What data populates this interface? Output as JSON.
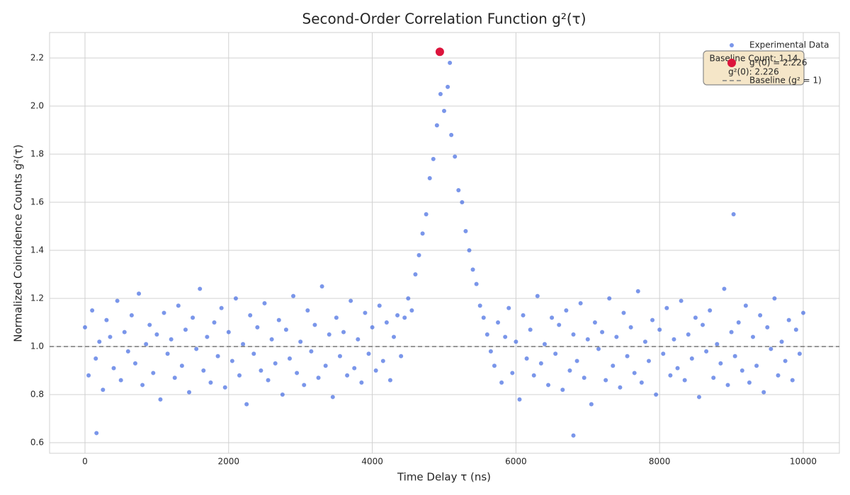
{
  "chart_data": {
    "type": "scatter",
    "title": "Second-Order Correlation Function g²(τ)",
    "x_label": "Time Delay τ (ns)",
    "y_label": "Normalized Coincidence Counts g²(τ)",
    "xlim": [
      -493,
      10503
    ],
    "ylim": [
      0.556,
      2.306
    ],
    "xticks": [
      0,
      2000,
      4000,
      6000,
      8000,
      10000
    ],
    "yticks": [
      0.6,
      0.8,
      {
        "value": 1,
        "label": "1.0"
      },
      1.2,
      1.4,
      1.6,
      1.8,
      {
        "value": 2,
        "label": "2.0"
      },
      2.2
    ],
    "grid": true,
    "legend": "upper right",
    "series": [
      {
        "name": "Experimental Data",
        "color": "#4169e1",
        "x": [
          0,
          50,
          100,
          150,
          200,
          250,
          300,
          350,
          400,
          450,
          500,
          550,
          600,
          650,
          700,
          750,
          800,
          850,
          900,
          950,
          1000,
          1050,
          1100,
          1150,
          1200,
          1250,
          1300,
          1350,
          1400,
          1450,
          1500,
          1550,
          1600,
          1650,
          1700,
          1750,
          1800,
          1850,
          1900,
          1950,
          2000,
          2050,
          2100,
          2150,
          2200,
          2250,
          2300,
          2350,
          2400,
          2450,
          2500,
          2550,
          2600,
          2650,
          2700,
          2750,
          2800,
          2850,
          2900,
          2950,
          3000,
          3050,
          3100,
          3150,
          3200,
          3250,
          3300,
          3350,
          3400,
          3450,
          3500,
          3550,
          3600,
          3650,
          3700,
          3750,
          3800,
          3850,
          3900,
          3950,
          4000,
          4050,
          4100,
          4150,
          4200,
          4250,
          4300,
          4350,
          4400,
          4450,
          4500,
          4550,
          4600,
          4650,
          4700,
          4750,
          4800,
          4850,
          4900,
          4950,
          5000,
          5050,
          5100,
          5150,
          5200,
          5250,
          5300,
          5350,
          5400,
          5450,
          5500,
          5550,
          5600,
          5650,
          5700,
          5750,
          5800,
          5850,
          5900,
          5950,
          6000,
          6050,
          6100,
          6150,
          6200,
          6250,
          6300,
          6350,
          6400,
          6450,
          6500,
          6550,
          6600,
          6650,
          6700,
          6750,
          6800,
          6850,
          6900,
          6950,
          7000,
          7050,
          7100,
          7150,
          7200,
          7250,
          7300,
          7350,
          7400,
          7450,
          7500,
          7550,
          7600,
          7650,
          7700,
          7750,
          7800,
          7850,
          7900,
          7950,
          8000,
          8050,
          8100,
          8150,
          8200,
          8250,
          8300,
          8350,
          8400,
          8450,
          8500,
          8550,
          8600,
          8650,
          8700,
          8750,
          8800,
          8850,
          8900,
          8950,
          9000,
          9050,
          9100,
          9150,
          9200,
          9250,
          9300,
          9350,
          9400,
          9450,
          9500,
          9550,
          9600,
          9650,
          9700,
          9750,
          9800,
          9850,
          9900,
          9950,
          10000,
          160,
          6800,
          9030,
          5080
        ],
        "values": [
          1.08,
          0.88,
          1.15,
          0.95,
          1.02,
          0.82,
          1.11,
          1.04,
          0.91,
          1.19,
          0.86,
          1.06,
          0.98,
          1.13,
          0.93,
          1.22,
          0.84,
          1.01,
          1.09,
          0.89,
          1.05,
          0.78,
          1.14,
          0.97,
          1.03,
          0.87,
          1.17,
          0.92,
          1.07,
          0.81,
          1.12,
          0.99,
          1.24,
          0.9,
          1.04,
          0.85,
          1.1,
          0.96,
          1.16,
          0.83,
          1.06,
          0.94,
          1.2,
          0.88,
          1.01,
          0.76,
          1.13,
          0.97,
          1.08,
          0.9,
          1.18,
          0.86,
          1.03,
          0.93,
          1.11,
          0.8,
          1.07,
          0.95,
          1.21,
          0.89,
          1.02,
          0.84,
          1.15,
          0.98,
          1.09,
          0.87,
          1.25,
          0.92,
          1.05,
          0.79,
          1.12,
          0.96,
          1.06,
          0.88,
          1.19,
          0.91,
          1.03,
          0.85,
          1.14,
          0.97,
          1.08,
          0.9,
          1.17,
          0.94,
          1.1,
          0.86,
          1.04,
          1.13,
          0.96,
          1.12,
          1.2,
          1.15,
          1.3,
          1.38,
          1.47,
          1.55,
          1.7,
          1.78,
          1.92,
          2.05,
          1.98,
          2.08,
          1.88,
          1.79,
          1.65,
          1.6,
          1.48,
          1.4,
          1.32,
          1.26,
          1.17,
          1.12,
          1.05,
          0.98,
          0.92,
          1.1,
          0.85,
          1.04,
          1.16,
          0.89,
          1.02,
          0.78,
          1.13,
          0.95,
          1.07,
          0.88,
          1.21,
          0.93,
          1.01,
          0.84,
          1.12,
          0.97,
          1.09,
          0.82,
          1.15,
          0.9,
          1.05,
          0.94,
          1.18,
          0.87,
          1.03,
          0.76,
          1.1,
          0.99,
          1.06,
          0.86,
          1.2,
          0.92,
          1.04,
          0.83,
          1.14,
          0.96,
          1.08,
          0.89,
          1.23,
          0.85,
          1.02,
          0.94,
          1.11,
          0.8,
          1.07,
          0.97,
          1.16,
          0.88,
          1.03,
          0.91,
          1.19,
          0.86,
          1.05,
          0.95,
          1.12,
          0.79,
          1.09,
          0.98,
          1.15,
          0.87,
          1.01,
          0.93,
          1.24,
          0.84,
          1.06,
          0.96,
          1.1,
          0.9,
          1.17,
          0.85,
          1.04,
          0.92,
          1.13,
          0.81,
          1.08,
          0.99,
          1.2,
          0.88,
          1.02,
          0.94,
          1.11,
          0.86,
          1.07,
          0.97,
          1.14,
          0.64,
          0.63,
          1.55,
          2.18
        ]
      },
      {
        "name": "g²(0) = 2.226",
        "color": "#dc143c",
        "x": [
          4940
        ],
        "values": [
          2.226
        ]
      },
      {
        "name": "Baseline (g² = 1)",
        "color": "#808080",
        "kind": "hline",
        "value": 1
      }
    ],
    "annotation": [
      "Baseline Count: 1.14",
      "g²(0): 2.226"
    ]
  }
}
